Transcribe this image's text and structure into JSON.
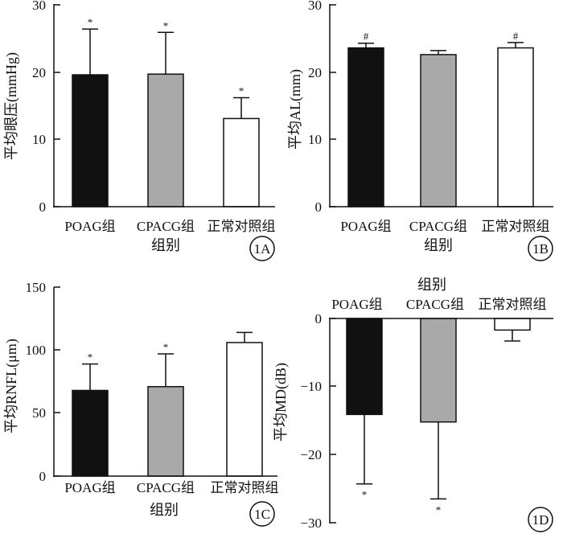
{
  "chart_data": [
    {
      "type": "bar",
      "panel_label": "1A",
      "ylabel": "平均眼压(mmHg)",
      "xlabel": "组别",
      "categories": [
        "POAG组",
        "CPACG组",
        "正常对照组"
      ],
      "values": [
        19.6,
        19.7,
        13.1
      ],
      "errors": [
        6.8,
        6.2,
        3.1
      ],
      "marks": [
        "*",
        "*",
        "*"
      ],
      "colors": [
        "#111111",
        "#a9a9a9",
        "#ffffff"
      ],
      "ylim": [
        0,
        30
      ],
      "yticks": [
        0,
        10,
        20,
        30
      ],
      "ytick_labels": [
        "0",
        "10",
        "20",
        "30"
      ],
      "xaxis_position": "bottom",
      "grid": false
    },
    {
      "type": "bar",
      "panel_label": "1B",
      "ylabel": "平均AL(mm)",
      "xlabel": "组别",
      "categories": [
        "POAG组",
        "CPACG组",
        "正常对照组"
      ],
      "values": [
        23.6,
        22.6,
        23.6
      ],
      "errors": [
        0.7,
        0.6,
        0.8
      ],
      "marks": [
        "#",
        "",
        "#"
      ],
      "colors": [
        "#111111",
        "#a9a9a9",
        "#ffffff"
      ],
      "ylim": [
        0,
        30
      ],
      "yticks": [
        0,
        10,
        20,
        30
      ],
      "ytick_labels": [
        "0",
        "10",
        "20",
        "30"
      ],
      "xaxis_position": "bottom",
      "grid": false
    },
    {
      "type": "bar",
      "panel_label": "1C",
      "ylabel": "平均RNFL(μm)",
      "xlabel": "组别",
      "categories": [
        "POAG组",
        "CPACG组",
        "正常对照组"
      ],
      "values": [
        68,
        71,
        106
      ],
      "errors": [
        21,
        26,
        8
      ],
      "marks": [
        "*",
        "*",
        ""
      ],
      "colors": [
        "#111111",
        "#a9a9a9",
        "#ffffff"
      ],
      "ylim": [
        0,
        150
      ],
      "yticks": [
        0,
        50,
        100,
        150
      ],
      "ytick_labels": [
        "0",
        "50",
        "100",
        "150"
      ],
      "xaxis_position": "bottom",
      "grid": false
    },
    {
      "type": "bar",
      "panel_label": "1D",
      "ylabel": "平均MD(dB)",
      "xlabel": "组别",
      "categories": [
        "POAG组",
        "CPACG组",
        "正常对照组"
      ],
      "values": [
        -14.1,
        -15.2,
        -1.7
      ],
      "errors": [
        10.2,
        11.3,
        1.6
      ],
      "marks": [
        "*",
        "*",
        ""
      ],
      "colors": [
        "#111111",
        "#a9a9a9",
        "#ffffff"
      ],
      "ylim": [
        -30,
        0
      ],
      "yticks": [
        0,
        -10,
        -20,
        -30
      ],
      "ytick_labels": [
        "0",
        "−10",
        "−20",
        "−30"
      ],
      "xaxis_position": "top",
      "grid": false
    }
  ]
}
